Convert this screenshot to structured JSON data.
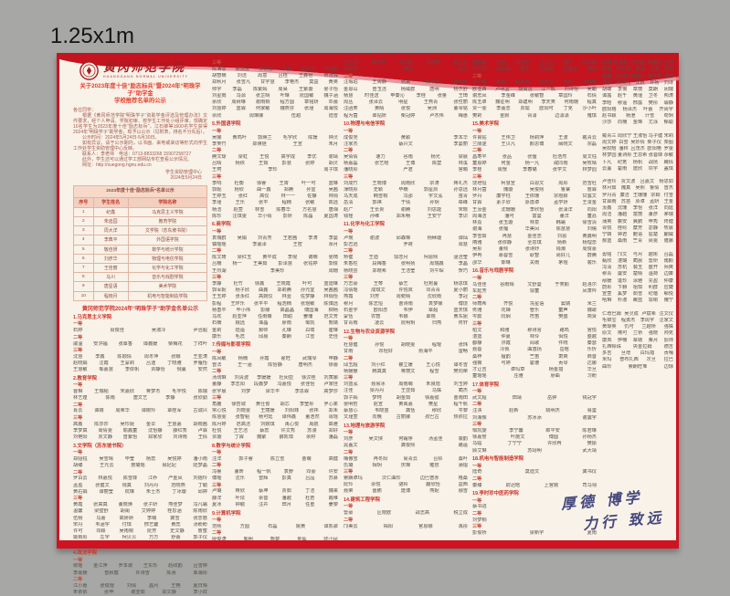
{
  "scale_label": "1.25x1m",
  "colors": {
    "frame_red": "#cf1322",
    "cream": "#f9f2e8",
    "title_red": "#e8402e",
    "motto_blue": "#44477e"
  },
  "university": {
    "name_cn": "黄冈师范学院",
    "name_en": "HUANGGANG NORMAL UNIVERSITY"
  },
  "announcement": {
    "title_line1": "关于2023年度十佳“励志标兵”暨2024年“明珠学子”助学金",
    "title_line2": "学校推荐名单的公示",
    "body": [
      "各位同学：",
      "根据《黄冈师范学院“明珠学子”资助学金评选及管理办法》文件要求，经个人申请、学院初审、校学生工作处小组评审，现确定10名学生为2023年度十佳“励志标兵”，江石柳等1600名学生获得2024年“明珠学子”助学金，现予以公示（见附表，排名不分先后）。",
      "公示时间：2024年5月24日-5月30日。",
      "如有异议，请于公示期内，以书面、来电或来访等形式向学生工作处学生资助管理中心反映。",
      "联系人：李老师　电话：0713-8833268 15907258727",
      "此外，学生还可以通过学工部网站专栏查看公示情况。",
      "网址：http://xuegong.hgnu.edu.cn"
    ],
    "signature": "学生资助管理中心",
    "date": "2024年5月24日"
  },
  "table": {
    "title": "2023年度十佳“励志标兵”名单公示",
    "headers": [
      "序号",
      "学生姓名",
      "学院名称"
    ],
    "rows": [
      [
        "1",
        "纪鑫",
        "马克思主义学院"
      ],
      [
        "2",
        "朱迪园",
        "教育学院"
      ],
      [
        "3",
        "周大洋",
        "文学院（苏东坡书院）"
      ],
      [
        "4",
        "李典平",
        "外国语学院"
      ],
      [
        "5",
        "敬佳妍",
        "数学与统计学院"
      ],
      [
        "6",
        "刘彦华",
        "物理与电信学院"
      ],
      [
        "7",
        "王佳丽",
        "化学与化工学院"
      ],
      [
        "8",
        "马川",
        "音乐与戏剧学院"
      ],
      [
        "9",
        "唐星语",
        "美术学院"
      ],
      [
        "10",
        "程晓月",
        "机电与智能制造学院"
      ]
    ]
  },
  "list_title": "黄冈师范学院2024年“明珠学子”助学金名单公示",
  "motto": {
    "line1": "厚德 博学",
    "line2": "力行 致远"
  },
  "columns": [
    [
      [
        "h",
        "1.马克思主义学院"
      ],
      [
        "g",
        "一等"
      ],
      [
        "r",
        "石婷 肖俊佳 吴淑冷 尹治超"
      ],
      [
        "g",
        "二等"
      ],
      [
        "r",
        "戚温 安洪福 张覃香 谭鑫媛 柴梅花 丁祥叶"
      ],
      [
        "g",
        "三等"
      ],
      [
        "r",
        "沈慧 李鑫 陈顺情 周冬萍 张娜 王亚涛"
      ],
      [
        "r",
        "赵晓娟 汪霞 王蒙莉 吕迪 丁晓雅 罗雁怡"
      ],
      [
        "r",
        "王慧敏 邹嘉慧 李依帆 贾静怡 倪蔓 安然"
      ],
      [
        "h",
        "2.教育学院"
      ],
      [
        "g",
        "一等"
      ],
      [
        "r",
        "曹琳 王瑞韬 宋嘉欣 蒋梦杰 毛宇悦 陈瑞"
      ],
      [
        "r",
        "林艺煌 陈雨 唐文艺 李静 张欣勤"
      ],
      [
        "g",
        "二等"
      ],
      [
        "r",
        "肖云 谭婧 周荣华 谭婉玲 覃桂军 古诚兴"
      ],
      [
        "g",
        "三等"
      ],
      [
        "r",
        "高鑫 陈莎莎 吴珍妮 金伞 王慧嘉 胡晓茜"
      ],
      [
        "r",
        "李梦真 周倩雯 喻鑫童 沈怡静 薛红秀 卢霖"
      ],
      [
        "r",
        "刘艳阳 贾文静 曾紫怡 郑家欣 刘诗雨 王倩"
      ],
      [
        "h",
        "3.文学院（苏东坡书院）"
      ],
      [
        "g",
        "一等"
      ],
      [
        "r",
        "郑娅钰 吴雪晴 毕莹 杨蕊 吴悦婷 潘小雨"
      ],
      [
        "r",
        "胡臻 王元云 詹璐瑶 易妃妃 陆梦晶"
      ],
      [
        "g",
        "二等"
      ],
      [
        "r",
        "罗白云 林嘉悦 陈雪菲 江乔 严金凤 刘摇玲"
      ],
      [
        "r",
        "孟盈 张健文 钱真 刘丹丹 范晓燕 丁毓"
      ],
      [
        "r",
        "黄右娟 谭丽莹 杭琳 朱士杰 丁冰璇 邱婷"
      ],
      [
        "g",
        "三等"
      ],
      [
        "r",
        "黄霞 张高真 董晓焕 张子妍 燕佳梦 冯凡霜"
      ],
      [
        "r",
        "温馨 梁璧舒 胡阑 艾婷婷 桂思涵 陈雨欣"
      ],
      [
        "r",
        "伍杨 马嘉 高娇娇 李萌 龚雪 张念慈"
      ],
      [
        "r",
        "宋丹 韦涵宇 付琪 邢艺馨 黄蕊 汤盼盼"
      ],
      [
        "r",
        "许可 邓颖 吴雨桐 阮芳 史文静 詹蜜"
      ],
      [
        "r",
        "姚雨彤 左宇 柯贝贝 万方 舒蕾 郭子仪"
      ],
      [
        "r",
        "熊振宇 任子言 龙玥 翟元清 常恋 文雅"
      ],
      [
        "h",
        "4.政法学院"
      ],
      [
        "g",
        "一等"
      ],
      [
        "r",
        "侯瑶 金江萍 罗本诚 王东珍 赵政韵 吕雪婷"
      ],
      [
        "r",
        "李嘉媛 曾秋霞 许诗雪 陈熹 覃海彤"
      ],
      [
        "g",
        "二等"
      ],
      [
        "r",
        "江小惠 张俊煜 刘倩 昌月 王艳 夏日晴"
      ],
      [
        "r",
        "朱依依 张苹 谢亚茹 郑文静 李小欢"
      ]
    ],
    [
      [
        "g",
        "三等"
      ],
      [
        "r",
        "陈满意 梁清波 朱杨蕾 李全 段玉杰 刘惠敏"
      ],
      [
        "r",
        "胡智楠 刘洁 周意 吕桂 王鑫怡 贺连锌"
      ],
      [
        "r",
        "郑秋月 张雪凡 甘宇慧 李艳杰 莫益 黄英"
      ],
      [
        "r",
        "帅宇 李磊 陈紫嫣 周昊 王紫璇 晏子怡"
      ],
      [
        "r",
        "刘星雨 冯源 张芷晴 叶琳 阮国敏 魏子涵"
      ],
      [
        "r",
        "余欣 周树琳 谢雨桐 程方圆 章铭妍 邓蕾"
      ],
      [
        "r",
        "刘慧婷 蓝霖 何家敏 魏燕芬 张瑾 周海悦"
      ],
      [
        "r",
        "佘欣 周琳娜 伍甜 陆雪"
      ],
      [
        "h",
        "5.外国语学院"
      ],
      [
        "g",
        "一等"
      ],
      [
        "r",
        "吴娜 黄鸣叶 郭焕兰 毛宇欣 陈瑗 钟灵"
      ],
      [
        "r",
        "李笑竹 郑焕娃 王宣 朱月"
      ],
      [
        "g",
        "二等"
      ],
      [
        "r",
        "腾文琼 梁虹 王悦 高宇成 李优 谢靖"
      ],
      [
        "r",
        "吕晴 杨依 王茹 彭慧 张婷 胡灵"
      ],
      [
        "r",
        "王珂 李珍 周子琪"
      ],
      [
        "g",
        "三等"
      ],
      [
        "r",
        "李响 杜衡 徐睿 王霄 叶一可 蓝琳"
      ],
      [
        "r",
        "郭妮 杨欣 曲一鑫 郑腾 孙宜 吴茜"
      ],
      [
        "r",
        "王婷玉 张红 高仪 林一一 佐静 林俏"
      ],
      [
        "r",
        "李瑾 王乐 张平 程楠 张敏 陈远"
      ],
      [
        "r",
        "杨洁 赵萱 林雪 陈春华 方名慧 唐湘"
      ],
      [
        "r",
        "陈珍 汪琪雯 华小倩 彭妍 陈晶 夏国涛"
      ],
      [
        "h",
        "6.商学院"
      ],
      [
        "g",
        "一等"
      ],
      [
        "r",
        "袁瑞群 吴娟 刘青芳 王若茜 李涛 李曼"
      ],
      [
        "r",
        "镇瑶瑶 李嘉泽 王密 余月"
      ],
      [
        "g",
        "二等"
      ],
      [
        "r",
        "陈文琦 梁红玉 黄平成 李倪 谢楠 晏琦"
      ],
      [
        "r",
        "吕楠 杨一 王美茹 彭泽慧 张钰婷 郭俊"
      ],
      [
        "r",
        "王烈湖 李美珍 周珊"
      ],
      [
        "g",
        "三等"
      ],
      [
        "r",
        "李静 杜竹 徐鑫 王晓霞 叶可 蓝迪琳"
      ],
      [
        "r",
        "郭军妮 杨子欣 曲鑫 郑莉腾 孙元宜 吴茜茜"
      ],
      [
        "r",
        "王玉婷 张永红 高婉仪 林壹 佐梦静 林俏怡"
      ],
      [
        "r",
        "彭程 王环乐 张平平 程浩楠 张煜敏 陈慎远"
      ],
      [
        "r",
        "杨善平 毕小伟 彭娜 高晶晶 傅国海 柳杨"
      ],
      [
        "r",
        "马欢 赵亚萍 任雨薇 田甜 姜珊 范文芳"
      ],
      [
        "r",
        "石楠 姚远 谭晶 廖雨 邹凯 熊婧"
      ],
      [
        "r",
        "金莉 陆遥 郝帅 孔琳 白鹭 崔琳"
      ],
      [
        "r",
        "康乐 毛蕊 邱晨 秦朗 江雪 史佳"
      ],
      [
        "h",
        "7.传媒与影视学院"
      ],
      [
        "g",
        "一等"
      ],
      [
        "r",
        "陈凤敏 杨楠 孙霞 翟旺 武瑞琴 申静"
      ],
      [
        "r",
        "曾法 王一涵 陈怡静 唐明杰 徐蕾"
      ],
      [
        "g",
        "二等"
      ],
      [
        "r",
        "汤琇琳 刘清波 李媛媛 杜闵亚 徐汶桂 刘寅娜"
      ],
      [
        "r",
        "董静 李志阳 段鑫梦 冯嘉悦 张佳怡 卢家佳"
      ],
      [
        "r",
        "张宇晨 刘梦 梁华平 李思霖 高梦莎"
      ],
      [
        "g",
        "三等"
      ],
      [
        "r",
        "角鹿 徐哲城 黄仕俊 胡芯 李莹彤 罗心柔"
      ],
      [
        "r",
        "常心悦 刘晓雯 王丽媛 刘阳菲 张祎 郑禾"
      ],
      [
        "r",
        "陈慧雯 张智韬 杨可廷 谭伟鑫 董浩然 肖瑶"
      ],
      [
        "r",
        "陈月婷 范高洁 刘婉琪 禹心悦 周航 高雅"
      ],
      [
        "r",
        "杜悦 王艺洁 蔡蕊 许文秀 苏漫 郑好"
      ],
      [
        "r",
        "贾璇 丁霖 魏紫 薛凯琪 余籽 潘磊"
      ],
      [
        "h",
        "8.数学与统计学院"
      ],
      [
        "g",
        "一等"
      ],
      [
        "r",
        "汪洋 郭子睿 陈立雪 曹萌 高健"
      ],
      [
        "g",
        "二等"
      ],
      [
        "r",
        "冯睿 董昕 程一帆 袁野 邓豪 许安"
      ],
      [
        "r",
        "傅瑶 沈乐 曾辉 彭真 吕品 苏慕"
      ],
      [
        "g",
        "三等"
      ],
      [
        "r",
        "卢璐 蒋欣 蔡坤 贾茹 丁洁 魏来"
      ],
      [
        "r",
        "薛洋 叶炫 余音 潘越 杜若 戴维"
      ],
      [
        "r",
        "夏冰 钟毓 汪卉 田月 任重 姜黎"
      ],
      [
        "h",
        "9.计算机学院"
      ],
      [
        "g",
        "一等"
      ],
      [
        "r",
        "范熙 方圆 石磊 姚黄 谭凯歌"
      ],
      [
        "g",
        "二等"
      ],
      [
        "r",
        "廖俊涛 邹明 熊楚 金灿 陆小凤"
      ]
    ],
    [
      [
        "r",
        "王立文 邓子晔 尚文雷 周建鸣 金元元"
      ],
      [
        "r",
        "再佳欣 吴玥 程可"
      ],
      [
        "g",
        "三等"
      ],
      [
        "r",
        "汪瑕珀 王周静 燕采 朱冷雪 邹瑞雨"
      ],
      [
        "r",
        "金恩山 曾玉洁 杨威群 唐明 杨杰舒"
      ],
      [
        "r",
        "杨慧 时佳送 甲秦沁 李桂 张量 王琦"
      ],
      [
        "r",
        "周丛 张泽云 明星 王燕青 张性丽"
      ],
      [
        "r",
        "汪函笑 黄晴 张悦 吴洲 董琴铭"
      ],
      [
        "r",
        "程为茵 覃钻妍 柴冠婷 卢杰伟 梅惠"
      ],
      [
        "h",
        "10.物理与电信学院"
      ],
      [
        "g",
        "一等"
      ],
      [
        "r",
        "成俊尧 黄颖 李本华"
      ],
      [
        "r",
        "汪家杰 蔡兴文 李曼丽"
      ],
      [
        "g",
        "二等"
      ],
      [
        "r",
        "吴倩倩 速力 谷雨 杨光 梁晨"
      ],
      [
        "r",
        "杨嘉磊 张艺晗 王博 陈堃 林溪"
      ],
      [
        "r",
        "潘晓彤 严君 宫萌"
      ],
      [
        "g",
        "三等"
      ],
      [
        "r",
        "刘成竹 王晓博 周雨欣 宗涛 蒋礼杰"
      ],
      [
        "r",
        "薄晓彤 史颖 毕楠 郭星辰 孙思远"
      ],
      [
        "r",
        "马天成 韩雪桐 冯邵 宇文泓 苗青"
      ],
      [
        "r",
        "岳清 郭祺 于倩 孙玥 皋峰"
      ],
      [
        "r",
        "赵广 王长贵 谢腾 刘思能 宋晓"
      ],
      [
        "r",
        "钱槿 孙维 郑禾畅 王安宁 李识"
      ],
      [
        "h",
        "11.化学与化工学院"
      ],
      [
        "g",
        "一等"
      ],
      [
        "r",
        "卢琬 谢波 邱森琳 杨秫璇 谭灿"
      ],
      [
        "r",
        "彭志远 罗荷 周慧"
      ],
      [
        "g",
        "二等"
      ],
      [
        "r",
        "矫健 王迪 邬念月 柯恩熙 逯洁莹"
      ],
      [
        "r",
        "朱香柱 段梅香 张明扬 周瑞鑫 李晶"
      ],
      [
        "r",
        "杨晓芸 郑晓希 王洁莹 刘午琛 贺巧"
      ],
      [
        "g",
        "三等"
      ],
      [
        "r",
        "万志豪 王棽 蔡艺 杜宛蔓 杨思琪"
      ],
      [
        "r",
        "冯倩瑶 成琪文 许悦岚 邓青青 夏小丽"
      ],
      [
        "r",
        "燕霞 刘芳 周菀晴 沈欣雨 李冠"
      ],
      [
        "r",
        "穆月 陈志恒 曹诗雨 袁梦娜 傅饶"
      ],
      [
        "r",
        "石金宇 欧阳念 韦伊 覃超 蓝天琪"
      ],
      [
        "r",
        "蒙恬 农智 韦娜 覃晓 黄东妮"
      ],
      [
        "r",
        "甘青雨 凌云 阮明玥 归燕 佟轩"
      ],
      [
        "h",
        "12.生物与农业资源学院"
      ],
      [
        "g",
        "一等"
      ],
      [
        "r",
        "杜慧健 孙悦 胡晓雯 程琨 张玮"
      ],
      [
        "r",
        "甘雨 邓轻好 俞海平 雷畅"
      ],
      [
        "g",
        "二等"
      ],
      [
        "r",
        "邱玉超 刘小红 瞿立媛 王心悦 谭冬雪"
      ],
      [
        "r",
        "杨媛媛 韩真真 蒋丽文 程雪 樊向荣"
      ],
      [
        "g",
        "三等"
      ],
      [
        "r",
        "刘蓝泓 聂易冰 周雨萌 朱良旭 刘玉婷"
      ],
      [
        "r",
        "汪佳 梁丹丹 王亚茹 马姝 蔺杰"
      ],
      [
        "r",
        "郭子嫣 梦珂 胡金茹 徐嘉懿 曹雨田"
      ],
      [
        "r",
        "晏明哲 赵宣 黄禹嘉 樊星 程千帆"
      ],
      [
        "r",
        "蔡慧心 韦晓苗 龚恬 穆欣 岑黎"
      ],
      [
        "r",
        "文瑾萱 向晚 古丽娜 孜巴古 热依拉"
      ],
      [
        "h",
        "13.地理与旅游学院"
      ],
      [
        "g",
        "一等"
      ],
      [
        "r",
        "刘彦 吴文侠 何霜序 汤孟佳 裴韵"
      ],
      [
        "r",
        "晁盖文 龚俊熙 路遥"
      ],
      [
        "g",
        "二等"
      ],
      [
        "r",
        "梅傲雪 冉冬阳 尚青云 台铃 桑叶"
      ],
      [
        "r",
        "仇璐 相玥 庆琳 雍容 蒲熠"
      ],
      [
        "g",
        "三等"
      ],
      [
        "r",
        "索朗卓玛 次仁曲珍 边巴普赤 格桑"
      ],
      [
        "r",
        "阮玲 佘悦 骆铃 蒯欣怡 益西"
      ],
      [
        "r",
        "聂荣 晋鹏 庞博 燕妮 融雪"
      ],
      [
        "h",
        "14.建筑工程学院"
      ],
      [
        "g",
        "一等"
      ],
      [
        "r",
        "訾豪 区晓欧 战志高 税立成"
      ],
      [
        "g",
        "二等"
      ],
      [
        "r",
        "邝美云 揭阳 官恩娜 禹彤"
      ]
    ],
    [
      [
        "r",
        "盛先敏 张恒 张洪平 王光远 管广 陈利伟"
      ],
      [
        "r",
        "邓文娟 成慧海 童杰 田甜圆 迟春蕾 董洁"
      ],
      [
        "g",
        "三等"
      ],
      [
        "r",
        "林小敏 蔡成 杜嘉浩 汪卓凡 方洁 刘璐瑶"
      ],
      [
        "r",
        "欧亚西 卢明宜 胡尚洁 江一帆 刘诗怡 吴頔"
      ],
      [
        "r",
        "谢忠凤 李金峰 张敏智 章国玲 石倩"
      ],
      [
        "r",
        "陈玉卓 魏征明 郑建明 李天笑 何雨珊 程真"
      ],
      [
        "r",
        "贾一雯 李嘉念 贾瑜 欧阳可 丁克 沙小叶"
      ],
      [
        "r",
        "樊莉 金默 胥潇 边潇潇 雍琪"
      ],
      [
        "h",
        "15.美术学院"
      ],
      [
        "g",
        "一等"
      ],
      [
        "r",
        "许良钻 王伟卫 杨莉萍 王波 戴青云"
      ],
      [
        "r",
        "兰顺遂 王贝凡 颜思博 阚晓文 宗磊"
      ],
      [
        "g",
        "二等"
      ],
      [
        "r",
        "昌寿平 张品 张俚 杜浩然 周文钰"
      ],
      [
        "r",
        "童恩婷 何金 杨一凡 咸同雨 吴牧晴"
      ],
      [
        "r",
        "李桂 周憬 李春璐 张学文 林梦园"
      ],
      [
        "g",
        "三等"
      ],
      [
        "r",
        "饶培恒 柯慧宣 白恩文 周彤 范雪杜"
      ],
      [
        "r",
        "林月茵 隗璇 吴俊熙 鲁棠 詹霖"
      ],
      [
        "r",
        "罗丹 廉学柱 王依珊 宗煜颖 甘露文"
      ],
      [
        "r",
        "甘霖 素子欣 原逸卓 孟学妍 王浚金"
      ],
      [
        "r",
        "王汝金 沈珊姗 李欣怡 张潇洋 向阳"
      ],
      [
        "r",
        "周海洁 潘可 富曼 董洋 童荔"
      ],
      [
        "r",
        "林荔 张玉璇 林泉 韩霜 徐雪清"
      ],
      [
        "r",
        "谢海 张榴 华美凤 陈慧慧 刘儒"
      ],
      [
        "r",
        "李雪茹 冉慧 金佳念 刘恩 黄鑫明"
      ],
      [
        "r",
        "隋雅 张依静 全思琪 杨新 杨理念"
      ],
      [
        "r",
        "吴彤 董倾 张诗妤 钱潮 周俊豪"
      ],
      [
        "r",
        "伊冉 慕蓉雪 耿智 尚好儿 蔚腾"
      ],
      [
        "r",
        "邵华 郜琳 关雨 茅煜 裴乐"
      ],
      [
        "h",
        "16.音乐与戏剧学院"
      ],
      [
        "g",
        "一等"
      ],
      [
        "r",
        "马佳佳 谷雨晴 文舒曼 于笑颜 赵洛尔"
      ],
      [
        "r",
        "车延芳 邬童 凤萧吟"
      ],
      [
        "g",
        "二等"
      ],
      [
        "r",
        "师葭希 齐悦 冼星语 窦婧 米兰"
      ],
      [
        "r",
        "佟雅 花婵 管乐 童声 魏歌"
      ],
      [
        "r",
        "岑韵 阮娴 符笛 樊盛 简贤"
      ],
      [
        "g",
        "三等"
      ],
      [
        "r",
        "柏文 和雅 穆诗言 路鸣 宫悦"
      ],
      [
        "r",
        "湛蓝 仲夏 林伶 佴悦 盛越"
      ],
      [
        "r",
        "都静 洪霞 闻歌 仵晓 秦瑟"
      ],
      [
        "r",
        "聂蓉 冷佩 曲悠扬 岳晗 乐忻"
      ],
      [
        "r",
        "桑梓 檀韵 竺笛 萧爽 商音"
      ],
      [
        "r",
        "强薇 弓婷 霍遵 贡琴 达娜"
      ],
      [
        "r",
        "才让吉 卓玛草 杨金措 华旦"
      ],
      [
        "r",
        "童瑶瑶 庄雅 廖曲 习盼"
      ],
      [
        "h",
        "17.体育学院"
      ],
      [
        "g",
        "一等"
      ],
      [
        "r",
        "武文超 田靖 岳骅 钱冠宇"
      ],
      [
        "g",
        "二等"
      ],
      [
        "r",
        "汪泱 赵新 姚明杰 易鉴"
      ],
      [
        "r",
        "刘湘豫 苏冰添 谢震宇"
      ],
      [
        "g",
        "三等"
      ],
      [
        "r",
        "邹凯旋 李宁馨 郎平安 陈若琳"
      ],
      [
        "r",
        "徐嘉誉 叶施文 傅圆 孙杨杰"
      ],
      [
        "r",
        "马临 丁宁宁 许欣冉 樊振"
      ],
      [
        "r",
        "顾艾琳 苏翊明 武大靖"
      ],
      [
        "h",
        "18.机电与智能制造学院"
      ],
      [
        "g",
        "一等"
      ],
      [
        "r",
        "陆奇 莫迪文 龚书仪"
      ],
      [
        "g",
        "二等"
      ],
      [
        "r",
        "秦臻 尉迟晗 上官婉 司马翎"
      ],
      [
        "h",
        "19.李时珍中医药学院"
      ],
      [
        "g",
        "一等"
      ],
      [
        "r",
        "蔡书进"
      ],
      [
        "g",
        "二等"
      ],
      [
        "r",
        "刘梦桐"
      ],
      [
        "g",
        "三等"
      ],
      [
        "r",
        "彭俊桥 梁新宇 夏雨"
      ]
    ],
    [
      [
        "r",
        "段婷 廖爱慧 张念茜 朱鹏悦 王榕"
      ],
      [
        "r",
        "廖君 徐婉君 夏娟 王艳 李苑"
      ],
      [
        "r",
        "谢榕 王心如 樊雅月 潘洪波 洪宇"
      ],
      [
        "r",
        "宋玲 黄保元 江帆 许扬 刘诗"
      ],
      [
        "r",
        "胡蝶 李慢 章丽 莫朗 闵瑞"
      ],
      [
        "r",
        "谭露 赵千 黄瑾 卫冬 陶涛"
      ],
      [
        "r",
        "李晗 穆遥 邢露 樊彤 璩静"
      ],
      [
        "r",
        "欧阳格 杨泽杰 叶蕾 齐尚宇"
      ],
      [
        "r",
        "赵书颖 杨澄 计雪 苟玥"
      ],
      [
        "r",
        "沙莎 向楠 金琳 尤泳 郁聪"
      ],
      [
        "s"
      ],
      [
        "r",
        "戴青三 周欣宁 王淑怡 马子健 宋莉"
      ],
      [
        "r",
        "周文婷 白雪 吴妙倩 柴子仪 栾图"
      ],
      [
        "r",
        "吴姣晗 潘林 吕茂杰 欧阳艳 罗雯"
      ],
      [
        "r",
        "林梦园 董诗彤 王思希 张蓉妹 佘敏"
      ],
      [
        "r",
        "卜凡 纪茗 杨帆 战扬 臧倩"
      ],
      [
        "r",
        "云蔓 霍雨 庞欣 项宇 盖琪"
      ],
      [
        "s"
      ],
      [
        "r",
        "卢佳玲 贾文波 吕嘉文 杨思如"
      ],
      [
        "r",
        "林月茹 隗真 吴熙 鲁倩 曾杰"
      ],
      [
        "r",
        "罗丹青 廉洁 王珊珊 宗颖 付雪"
      ],
      [
        "r",
        "甘霖雨 苏苗 原卓 孟妍 王金"
      ],
      [
        "r",
        "汝鑫 沈珊 李怡 张洋 向延"
      ],
      [
        "r",
        "周洁 潘越 富丽 董彦 茅瑞"
      ],
      [
        "r",
        "蒲英 裘安 冀鹏 申秀 佟健"
      ],
      [
        "r",
        "胥悦 桂纶 糜芳 宓静 牧晨"
      ],
      [
        "r",
        "宁婧 钟君 鲍语 屈楚 蒯威"
      ],
      [
        "r",
        "郝蓝 桑雨 竺青 尚雯 隆娜"
      ],
      [
        "s"
      ],
      [
        "r",
        "毋铭 邝文 弓月 越彬 台磊"
      ],
      [
        "r",
        "甄欣 湛璐 蔺晨 訾妍 南颜"
      ],
      [
        "r",
        "冯清 苏杭 裴玉 盛开 师爽"
      ],
      [
        "r",
        "穆青 虞安 楚晴 温荷 边策"
      ],
      [
        "r",
        "邴媛 逄珍 涂雅 充盈 仲康"
      ],
      [
        "r",
        "蔚彤 卞赫 祖琪 利群 应婕"
      ],
      [
        "r",
        "宣萱 奚梦 茹雪 纪蓓 郗悦"
      ],
      [
        "r",
        "哈琳 朴淑 臧蓝 邬桐 隗宁"
      ],
      [
        "s"
      ],
      [
        "r",
        "仁增巴姆 吴灵成 卢斌希 汪文仪"
      ],
      [
        "r",
        "毛锦宝 程勇杰 李周宇 汪家文"
      ],
      [
        "r",
        "黄琼英 仇可 兰越桥 强姝"
      ],
      [
        "r",
        "原文 隋可 兰桥 强晓 帅克"
      ],
      [
        "r",
        "康岚 伊楠 覃婧 粟月 邸帅"
      ],
      [
        "r",
        "扎西顿珠 央金拉姆 德吉"
      ],
      [
        "r",
        "多吉 旦增 白玛措 贡嘎"
      ],
      [
        "r",
        "米玛 普布扎西 次旦 拉巴"
      ],
      [
        "r",
        "曲珍 索朗旺堆 边琼"
      ]
    ]
  ]
}
